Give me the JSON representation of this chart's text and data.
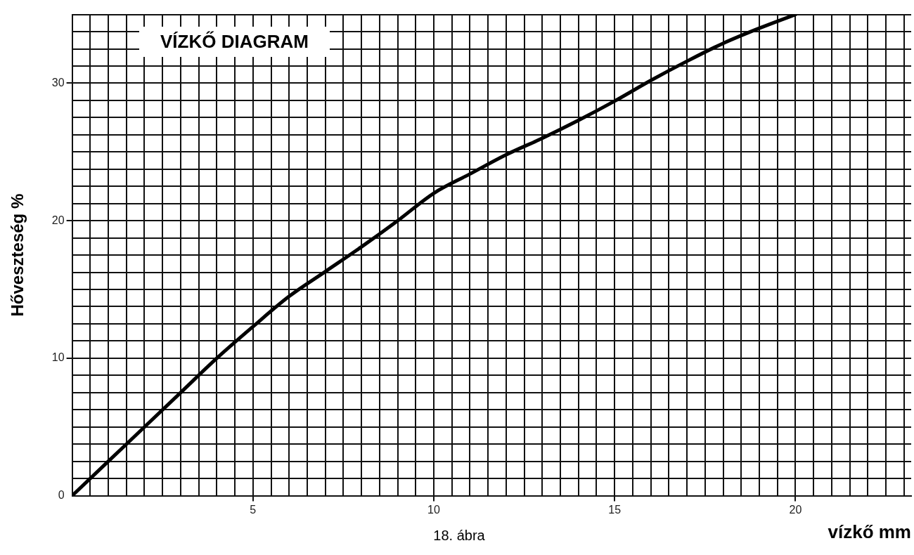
{
  "chart_data": {
    "type": "line",
    "title": "VÍZKŐ DIAGRAM",
    "xlabel": "vízkő mm",
    "ylabel": "Hőveszteség %",
    "annotations": [
      "18. ábra"
    ],
    "x": [
      0,
      1,
      2,
      3,
      4,
      5,
      6,
      7,
      8,
      9,
      10,
      11,
      12,
      13,
      14,
      15,
      16,
      17,
      18,
      19,
      20
    ],
    "series": [
      {
        "color": "#000000",
        "values": [
          0,
          2.5,
          5,
          7.5,
          10,
          12.3,
          14.5,
          16.3,
          18.1,
          20,
          22,
          23.4,
          24.8,
          26,
          27.3,
          28.7,
          30.2,
          31.6,
          32.9,
          34,
          35
        ]
      }
    ],
    "xlim": [
      0,
      23.2
    ],
    "ylim": [
      0,
      35
    ],
    "xticks": [
      {
        "value": 0,
        "label": null
      },
      {
        "value": 0.5,
        "label": null
      },
      {
        "value": 1,
        "label": null
      },
      {
        "value": 1.5,
        "label": null
      },
      {
        "value": 2,
        "label": null
      },
      {
        "value": 2.5,
        "label": null
      },
      {
        "value": 3,
        "label": null
      },
      {
        "value": 3.5,
        "label": null
      },
      {
        "value": 4,
        "label": null
      },
      {
        "value": 4.5,
        "label": null
      },
      5,
      {
        "value": 5.5,
        "label": null
      },
      {
        "value": 6,
        "label": null
      },
      {
        "value": 6.5,
        "label": null
      },
      {
        "value": 7,
        "label": null
      },
      {
        "value": 7.5,
        "label": null
      },
      {
        "value": 8,
        "label": null
      },
      {
        "value": 8.5,
        "label": null
      },
      {
        "value": 9,
        "label": null
      },
      {
        "value": 9.5,
        "label": null
      },
      10,
      {
        "value": 10.5,
        "label": null
      },
      {
        "value": 11,
        "label": null
      },
      {
        "value": 11.5,
        "label": null
      },
      {
        "value": 12,
        "label": null
      },
      {
        "value": 12.5,
        "label": null
      },
      {
        "value": 13,
        "label": null
      },
      {
        "value": 13.5,
        "label": null
      },
      {
        "value": 14,
        "label": null
      },
      {
        "value": 14.5,
        "label": null
      },
      15,
      {
        "value": 15.5,
        "label": null
      },
      {
        "value": 16,
        "label": null
      },
      {
        "value": 16.5,
        "label": null
      },
      {
        "value": 17,
        "label": null
      },
      {
        "value": 17.5,
        "label": null
      },
      {
        "value": 18,
        "label": null
      },
      {
        "value": 18.5,
        "label": null
      },
      {
        "value": 19,
        "label": null
      },
      {
        "value": 19.5,
        "label": null
      },
      20,
      {
        "value": 20.5,
        "label": null
      },
      {
        "value": 21,
        "label": null
      },
      {
        "value": 21.5,
        "label": null
      },
      {
        "value": 22,
        "label": null
      },
      {
        "value": 22.5,
        "label": null
      },
      {
        "value": 23,
        "label": null
      }
    ],
    "yticks": [
      0,
      {
        "value": 1.25,
        "label": null
      },
      {
        "value": 2.5,
        "label": null
      },
      {
        "value": 3.75,
        "label": null
      },
      {
        "value": 5,
        "label": null
      },
      {
        "value": 6.25,
        "label": null
      },
      {
        "value": 7.5,
        "label": null
      },
      {
        "value": 8.75,
        "label": null
      },
      10,
      {
        "value": 11.25,
        "label": null
      },
      {
        "value": 12.5,
        "label": null
      },
      {
        "value": 13.75,
        "label": null
      },
      {
        "value": 15,
        "label": null
      },
      {
        "value": 16.25,
        "label": null
      },
      {
        "value": 17.5,
        "label": null
      },
      {
        "value": 18.75,
        "label": null
      },
      20,
      {
        "value": 21.25,
        "label": null
      },
      {
        "value": 22.5,
        "label": null
      },
      {
        "value": 23.75,
        "label": null
      },
      {
        "value": 25,
        "label": null
      },
      {
        "value": 26.25,
        "label": null
      },
      {
        "value": 27.5,
        "label": null
      },
      {
        "value": 28.75,
        "label": null
      },
      30,
      {
        "value": 31.25,
        "label": null
      },
      {
        "value": 32.5,
        "label": null
      },
      {
        "value": 33.75,
        "label": null
      },
      {
        "value": 35,
        "label": null
      }
    ],
    "grid": true,
    "marker": "none",
    "line_style": "solid",
    "legend": false
  }
}
